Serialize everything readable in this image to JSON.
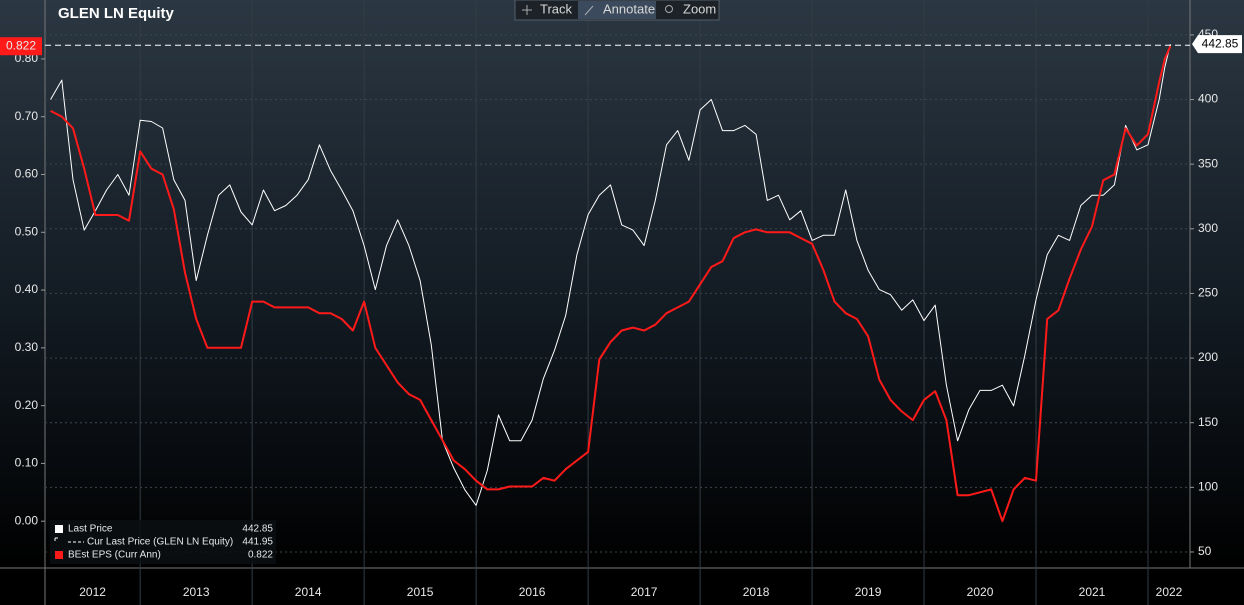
{
  "chart_data": {
    "type": "line",
    "title": "GLEN LN Equity",
    "x": [
      2012.2,
      2012.3,
      2012.4,
      2012.5,
      2012.6,
      2012.7,
      2012.8,
      2012.9,
      2013.0,
      2013.1,
      2013.2,
      2013.3,
      2013.4,
      2013.5,
      2013.6,
      2013.7,
      2013.8,
      2013.9,
      2014.0,
      2014.1,
      2014.2,
      2014.3,
      2014.4,
      2014.5,
      2014.6,
      2014.7,
      2014.8,
      2014.9,
      2015.0,
      2015.1,
      2015.2,
      2015.3,
      2015.4,
      2015.5,
      2015.6,
      2015.7,
      2015.8,
      2015.9,
      2016.0,
      2016.1,
      2016.2,
      2016.3,
      2016.4,
      2016.5,
      2016.6,
      2016.7,
      2016.8,
      2016.9,
      2017.0,
      2017.1,
      2017.2,
      2017.3,
      2017.4,
      2017.5,
      2017.6,
      2017.7,
      2017.8,
      2017.9,
      2018.0,
      2018.1,
      2018.2,
      2018.3,
      2018.4,
      2018.5,
      2018.6,
      2018.7,
      2018.8,
      2018.9,
      2019.0,
      2019.1,
      2019.2,
      2019.3,
      2019.4,
      2019.5,
      2019.6,
      2019.7,
      2019.8,
      2019.9,
      2020.0,
      2020.1,
      2020.2,
      2020.3,
      2020.4,
      2020.5,
      2020.6,
      2020.7,
      2020.8,
      2020.9,
      2021.0,
      2021.1,
      2021.2,
      2021.3,
      2021.4,
      2021.5,
      2021.6,
      2021.7,
      2021.8,
      2021.9,
      2022.0,
      2022.1,
      2022.15,
      2022.2
    ],
    "series": [
      {
        "name": "Last Price",
        "color": "#ffffff",
        "axis": "y2",
        "values": [
          400,
          415,
          338,
          299,
          314,
          330,
          342,
          326,
          384,
          383,
          378,
          338,
          322,
          260,
          295,
          326,
          334,
          313,
          303,
          330,
          314,
          318,
          326,
          338,
          365,
          345,
          330,
          314,
          287,
          253,
          287,
          307,
          287,
          260,
          210,
          136,
          115,
          98,
          86,
          113,
          156,
          136,
          136,
          152,
          184,
          206,
          233,
          280,
          311,
          326,
          334,
          303,
          299,
          287,
          322,
          365,
          376,
          353,
          392,
          400,
          376,
          376,
          380,
          373,
          322,
          326,
          307,
          314,
          291,
          295,
          295,
          330,
          291,
          268,
          253,
          249,
          237,
          245,
          229,
          241,
          179,
          136,
          160,
          175,
          175,
          179,
          163,
          202,
          245,
          280,
          295,
          291,
          318,
          326,
          326,
          334,
          380,
          361,
          365,
          400,
          425,
          442.85
        ]
      },
      {
        "name": "BEst EPS (Curr Ann)",
        "color": "#ff1a1a",
        "values": [
          0.71,
          0.7,
          0.68,
          0.61,
          0.53,
          0.53,
          0.53,
          0.52,
          0.64,
          0.61,
          0.6,
          0.54,
          0.43,
          0.35,
          0.3,
          0.3,
          0.3,
          0.3,
          0.38,
          0.38,
          0.37,
          0.37,
          0.37,
          0.37,
          0.36,
          0.36,
          0.35,
          0.33,
          0.38,
          0.3,
          0.27,
          0.24,
          0.22,
          0.21,
          0.175,
          0.14,
          0.105,
          0.09,
          0.07,
          0.055,
          0.055,
          0.06,
          0.06,
          0.06,
          0.075,
          0.07,
          0.09,
          0.105,
          0.12,
          0.28,
          0.31,
          0.33,
          0.335,
          0.33,
          0.34,
          0.36,
          0.37,
          0.38,
          0.41,
          0.44,
          0.45,
          0.49,
          0.5,
          0.505,
          0.5,
          0.5,
          0.5,
          0.49,
          0.48,
          0.435,
          0.38,
          0.36,
          0.35,
          0.32,
          0.245,
          0.21,
          0.19,
          0.175,
          0.21,
          0.225,
          0.175,
          0.045,
          0.045,
          0.05,
          0.055,
          0.0,
          0.055,
          0.075,
          0.07,
          0.35,
          0.365,
          0.42,
          0.47,
          0.51,
          0.59,
          0.6,
          0.68,
          0.65,
          0.67,
          0.76,
          0.8,
          0.822
        ]
      }
    ],
    "reference_line": {
      "name": "Cur Last Price (GLEN LN Equity)",
      "value": 441.95,
      "color": "#ffffff"
    },
    "xlim": [
      2012.15,
      2022.375
    ],
    "xticks": [
      2012,
      2013,
      2014,
      2015,
      2016,
      2017,
      2018,
      2019,
      2020,
      2021,
      2022
    ],
    "ylim": [
      -0.081,
      0.902
    ],
    "yticks": [
      {
        "value": 0,
        "label": "0.00"
      },
      {
        "value": 0.1,
        "label": "0.10"
      },
      {
        "value": 0.2,
        "label": "0.20"
      },
      {
        "value": 0.3,
        "label": "0.30"
      },
      {
        "value": 0.4,
        "label": "0.40"
      },
      {
        "value": 0.5,
        "label": "0.50"
      },
      {
        "value": 0.6,
        "label": "0.60"
      },
      {
        "value": 0.7,
        "label": "0.70"
      },
      {
        "value": 0.8,
        "label": "0.80"
      }
    ],
    "y2lim": [
      37.6,
      477
    ],
    "y2ticks": [
      50,
      100,
      150,
      200,
      250,
      300,
      350,
      400,
      450
    ],
    "grid": true
  },
  "toolbar": {
    "buttons": [
      "Track",
      "Annotate",
      "Zoom"
    ]
  }
}
